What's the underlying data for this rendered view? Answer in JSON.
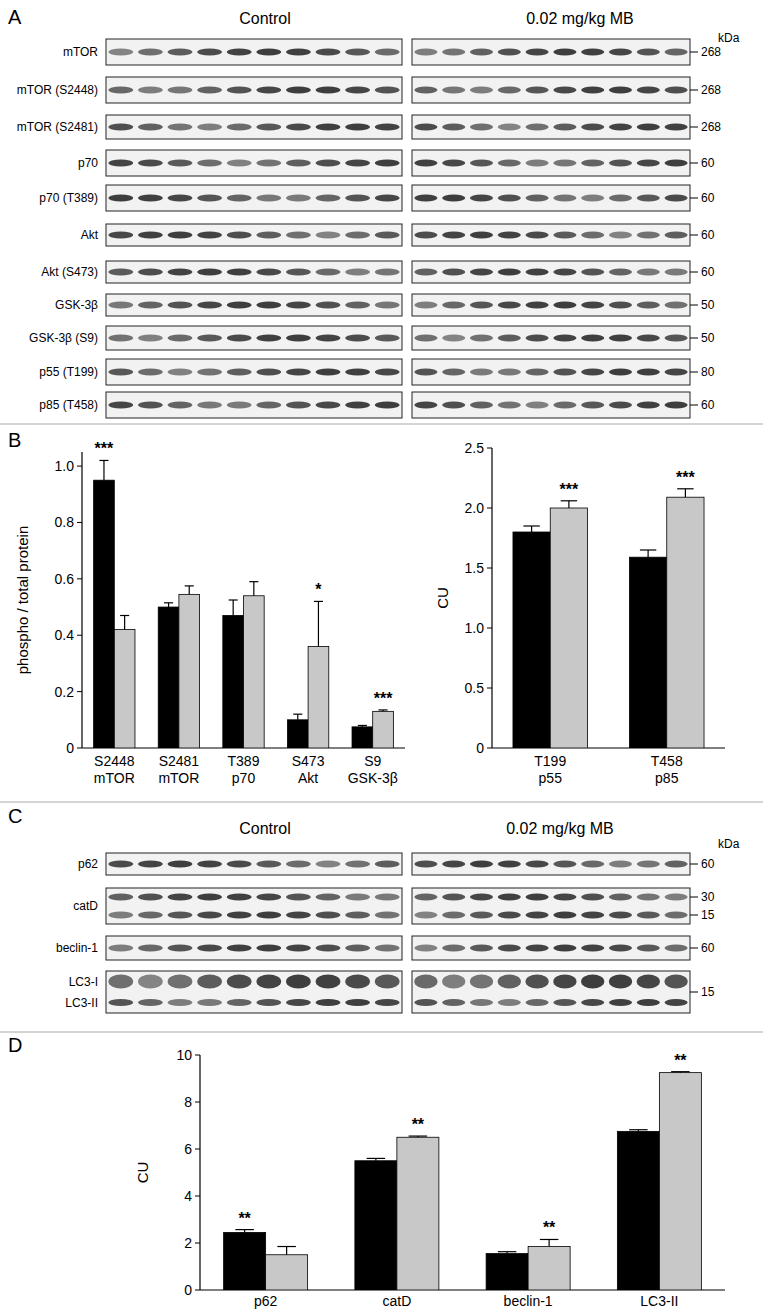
{
  "figure": {
    "panel_labels": [
      "A",
      "B",
      "C",
      "D"
    ]
  },
  "blot_panels": [
    {
      "groups": [
        "Control",
        "0.02 mg/kg MB"
      ],
      "unit": "kDa",
      "rows": [
        {
          "labels": [
            "mTOR"
          ],
          "markers": [
            268
          ]
        },
        {
          "labels": [
            "mTOR (S2448)"
          ],
          "markers": [
            268
          ]
        },
        {
          "labels": [
            "mTOR (S2481)"
          ],
          "markers": [
            268
          ]
        },
        {
          "labels": [
            "p70"
          ],
          "markers": [
            60
          ]
        },
        {
          "labels": [
            "p70 (T389)"
          ],
          "markers": [
            60
          ]
        },
        {
          "labels": [
            "Akt"
          ],
          "markers": [
            60
          ]
        },
        {
          "labels": [
            "Akt (S473)"
          ],
          "markers": [
            60
          ]
        },
        {
          "labels": [
            "GSK-3β"
          ],
          "markers": [
            50
          ]
        },
        {
          "labels": [
            "GSK-3β (S9)"
          ],
          "markers": [
            50
          ]
        },
        {
          "labels": [
            "p55 (T199)"
          ],
          "markers": [
            80
          ]
        },
        {
          "labels": [
            "p85 (T458)"
          ],
          "markers": [
            60
          ]
        }
      ]
    },
    {
      "groups": [
        "Control",
        "0.02 mg/kg MB"
      ],
      "unit": "kDa",
      "rows": [
        {
          "labels": [
            "p62"
          ],
          "markers": [
            60
          ]
        },
        {
          "labels": [
            "catD"
          ],
          "markers": [
            30,
            15
          ]
        },
        {
          "labels": [
            "beclin-1"
          ],
          "markers": [
            60
          ]
        },
        {
          "labels": [
            "LC3-I",
            "LC3-II"
          ],
          "markers": [
            15
          ]
        }
      ]
    }
  ],
  "chart_data": [
    {
      "type": "bar",
      "y_label": "phospho / total protein",
      "categories": [
        "S2448 mTOR",
        "S2481 mTOR",
        "T389 p70",
        "S473 Akt",
        "S9 GSK-3β"
      ],
      "series": [
        {
          "color": "#000000",
          "values": [
            0.95,
            0.5,
            0.47,
            0.1,
            0.075
          ],
          "errors": [
            0.07,
            0.015,
            0.055,
            0.02,
            0.005
          ]
        },
        {
          "color": "#c8c8c8",
          "values": [
            0.42,
            0.545,
            0.54,
            0.36,
            0.13
          ],
          "errors": [
            0.05,
            0.03,
            0.05,
            0.16,
            0.005
          ]
        }
      ],
      "ylim": [
        0,
        1.05
      ],
      "yticks": [
        0,
        0.2,
        0.4,
        0.6,
        0.8,
        {
          "value": 1,
          "label": "1.0"
        }
      ],
      "annotations": [
        {
          "category": "S2448 mTOR",
          "text": "***"
        },
        {
          "category": "S473 Akt",
          "text": "*"
        },
        {
          "category": "S9 GSK-3β",
          "text": "***"
        }
      ]
    },
    {
      "type": "bar",
      "y_label": "CU",
      "categories": [
        "T199 p55",
        "T458 p85"
      ],
      "series": [
        {
          "color": "#000000",
          "values": [
            1.8,
            1.59
          ],
          "errors": [
            0.05,
            0.06
          ]
        },
        {
          "color": "#c8c8c8",
          "values": [
            2.0,
            2.09
          ],
          "errors": [
            0.06,
            0.07
          ]
        }
      ],
      "ylim": [
        0,
        2.5
      ],
      "yticks": [
        0,
        0.5,
        {
          "value": 1,
          "label": "1.0"
        },
        1.5,
        {
          "value": 2,
          "label": "2.0"
        },
        2.5
      ],
      "annotations": [
        {
          "category": "T199 p55",
          "text": "***"
        },
        {
          "category": "T458 p85",
          "text": "***"
        }
      ]
    },
    {
      "type": "bar",
      "y_label": "CU",
      "categories": [
        "p62",
        "catD",
        "beclin-1",
        "LC3-II"
      ],
      "series": [
        {
          "color": "#000000",
          "values": [
            2.45,
            5.5,
            1.55,
            6.75
          ],
          "errors": [
            0.12,
            0.1,
            0.08,
            0.07
          ]
        },
        {
          "color": "#c8c8c8",
          "values": [
            1.5,
            6.5,
            1.85,
            9.25
          ],
          "errors": [
            0.35,
            0.05,
            0.3,
            0.04
          ]
        }
      ],
      "ylim": [
        0,
        10
      ],
      "yticks": [
        0,
        2,
        4,
        6,
        8,
        10
      ],
      "annotations": [
        {
          "category": "p62",
          "text": "**"
        },
        {
          "category": "catD",
          "text": "**"
        },
        {
          "category": "beclin-1",
          "text": "**"
        },
        {
          "category": "LC3-II",
          "text": "**"
        }
      ]
    }
  ]
}
